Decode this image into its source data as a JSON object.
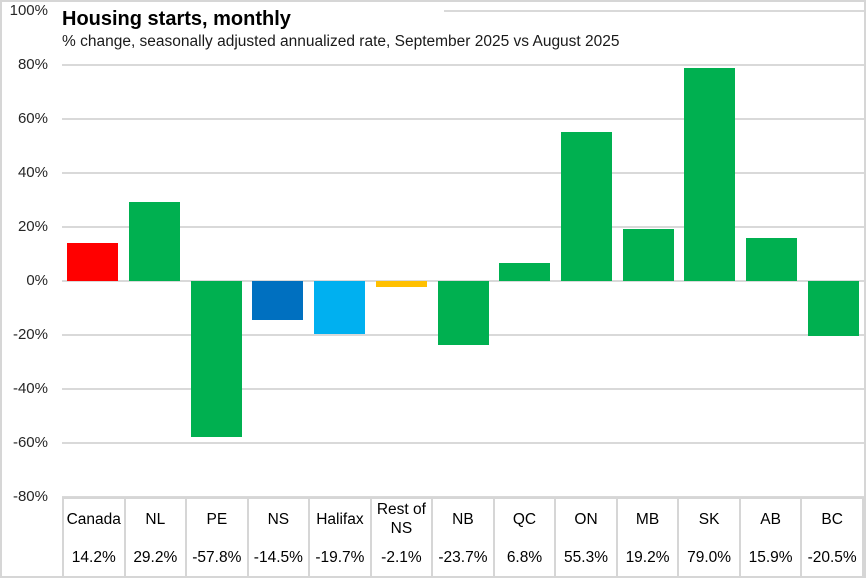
{
  "chart_data": {
    "type": "bar",
    "title": "Housing starts, monthly",
    "subtitle": "% change, seasonally adjusted annualized rate, September 2025 vs August 2025",
    "categories": [
      "Canada",
      "NL",
      "PE",
      "NS",
      "Halifax",
      "Rest of NS",
      "NB",
      "QC",
      "ON",
      "MB",
      "SK",
      "AB",
      "BC"
    ],
    "values": [
      14.2,
      29.2,
      -57.8,
      -14.5,
      -19.7,
      -2.1,
      -23.7,
      6.8,
      55.3,
      19.2,
      79.0,
      15.9,
      -20.5
    ],
    "value_labels": [
      "14.2%",
      "29.2%",
      "-57.8%",
      "-14.5%",
      "-19.7%",
      "-2.1%",
      "-23.7%",
      "6.8%",
      "55.3%",
      "19.2%",
      "79.0%",
      "15.9%",
      "-20.5%"
    ],
    "bar_colors": [
      "#FF0000",
      "#00B050",
      "#00B050",
      "#0070C0",
      "#00B0F0",
      "#FFC000",
      "#00B050",
      "#00B050",
      "#00B050",
      "#00B050",
      "#00B050",
      "#00B050",
      "#00B050"
    ],
    "ylim": [
      -80,
      100
    ],
    "yticks": [
      100,
      80,
      60,
      40,
      20,
      0,
      -20,
      -40,
      -60,
      -80
    ],
    "ytick_labels": [
      "100%",
      "80%",
      "60%",
      "40%",
      "20%",
      "0%",
      "-20%",
      "-40%",
      "-60%",
      "-80%"
    ],
    "grid": true,
    "legend": false,
    "show_data_table": true
  },
  "style": {
    "bar_red": "#FF0000",
    "bar_green": "#00B050",
    "bar_dark_blue": "#0070C0",
    "bar_light_blue": "#00B0F0",
    "bar_gold": "#FFC000",
    "gridline_color": "#D9D9D9",
    "border_color": "#D6D6D6",
    "axis_text_color": "#262626"
  }
}
